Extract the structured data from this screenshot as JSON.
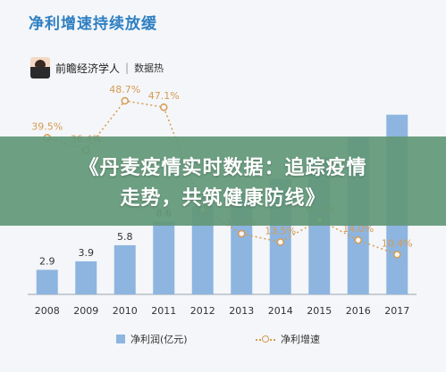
{
  "title": "净利增速持续放缓",
  "source": {
    "name": "前瞻经济学人",
    "tag": "数据热"
  },
  "banner": {
    "line1": "《丹麦疫情实时数据：追踪疫情",
    "line2": "走势，共筑健康防线》"
  },
  "chart_data": {
    "type": "bar",
    "categories": [
      "2008",
      "2009",
      "2010",
      "2011",
      "2012",
      "2013",
      "2014",
      "2015",
      "2016",
      "2017"
    ],
    "series": [
      {
        "name": "净利润(亿元)",
        "type": "bar",
        "values": [
          2.9,
          3.9,
          5.8,
          8.6,
          10.4,
          12.0,
          13.6,
          16.2,
          18.5,
          21.2
        ],
        "labels": [
          "2.9",
          "3.9",
          "5.8",
          "8.6",
          "10.4",
          "",
          "",
          "",
          "",
          ""
        ],
        "color": "#8db5e0"
      },
      {
        "name": "净利增速",
        "type": "line",
        "values": [
          39.5,
          36.4,
          48.7,
          47.1,
          21.5,
          15.6,
          13.5,
          19.0,
          14.0,
          10.4
        ],
        "labels": [
          "39.5%",
          "36.4%",
          "48.7%",
          "47.1%",
          "21.5%",
          "15.6%",
          "13.5%",
          "19.0%",
          "14.0%",
          "10.4%"
        ],
        "color": "#d79b52"
      }
    ],
    "xlabel": "",
    "ylabel": "",
    "legend": "bottom",
    "grid": false
  }
}
